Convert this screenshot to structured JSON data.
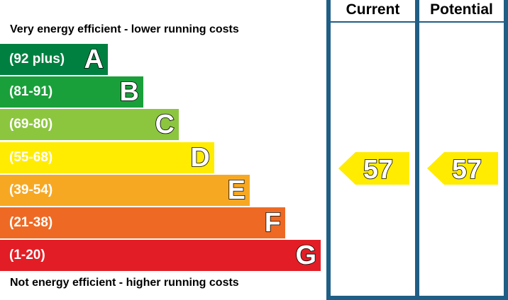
{
  "chart_data": {
    "type": "bar",
    "top_caption": "Very energy efficient - lower running costs",
    "bottom_caption": "Not energy efficient - higher running costs",
    "bands": [
      {
        "letter": "A",
        "range": "(92 plus)",
        "color": "#008040"
      },
      {
        "letter": "B",
        "range": "(81-91)",
        "color": "#1aa03a"
      },
      {
        "letter": "C",
        "range": "(69-80)",
        "color": "#8cc63f"
      },
      {
        "letter": "D",
        "range": "(55-68)",
        "color": "#ffec00"
      },
      {
        "letter": "E",
        "range": "(39-54)",
        "color": "#f7a823"
      },
      {
        "letter": "F",
        "range": "(21-38)",
        "color": "#ee6a24"
      },
      {
        "letter": "G",
        "range": "(1-20)",
        "color": "#e31d25"
      }
    ],
    "columns": [
      {
        "header": "Current",
        "value": 57,
        "band": "D"
      },
      {
        "header": "Potential",
        "value": 57,
        "band": "D"
      }
    ]
  },
  "colors": {
    "frame": "#1f5e85",
    "arrow": "#ffec00"
  }
}
